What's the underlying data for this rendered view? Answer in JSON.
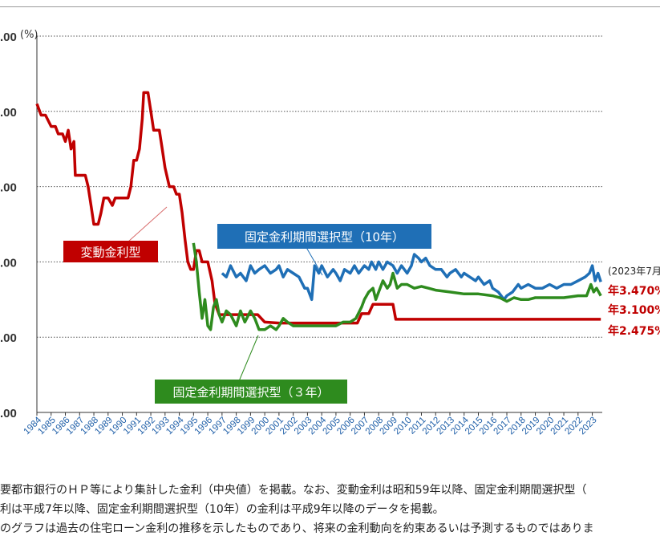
{
  "chart_data": {
    "type": "line",
    "y_unit": "(%)",
    "ylim": [
      0,
      10
    ],
    "yticks": [
      {
        "value": 10,
        "label": ".00"
      },
      {
        "value": 8,
        "label": ".00"
      },
      {
        "value": 6,
        "label": ".00"
      },
      {
        "value": 4,
        "label": ".00"
      },
      {
        "value": 2,
        "label": ".00"
      },
      {
        "value": 0,
        "label": ".00"
      }
    ],
    "xlim": [
      1984,
      2023.7
    ],
    "xticks": [
      "1984",
      "1985",
      "1986",
      "1987",
      "1988",
      "1989",
      "1990",
      "1991",
      "1992",
      "1993",
      "1994",
      "1995",
      "1996",
      "1997",
      "1998",
      "1999",
      "2000",
      "2001",
      "2002",
      "2003",
      "2004",
      "2005",
      "2006",
      "2007",
      "2008",
      "2009",
      "2010",
      "2011",
      "2012",
      "2013",
      "2014",
      "2015",
      "2016",
      "2017",
      "2018",
      "2019",
      "2020",
      "2021",
      "2022",
      "2023"
    ],
    "grid": "horizontal dotted",
    "series": [
      {
        "name": "変動金利型",
        "color": "#c00000",
        "label_color": "#c00000",
        "points": [
          [
            1984.0,
            8.2
          ],
          [
            1984.3,
            7.9
          ],
          [
            1984.6,
            7.9
          ],
          [
            1985.0,
            7.6
          ],
          [
            1985.3,
            7.6
          ],
          [
            1985.5,
            7.4
          ],
          [
            1985.8,
            7.4
          ],
          [
            1986.0,
            7.2
          ],
          [
            1986.2,
            7.5
          ],
          [
            1986.4,
            7.0
          ],
          [
            1986.6,
            7.2
          ],
          [
            1986.7,
            6.3
          ],
          [
            1987.0,
            6.3
          ],
          [
            1987.4,
            6.3
          ],
          [
            1987.6,
            6.0
          ],
          [
            1987.8,
            5.5
          ],
          [
            1988.0,
            5.0
          ],
          [
            1988.3,
            5.0
          ],
          [
            1988.5,
            5.3
          ],
          [
            1988.7,
            5.7
          ],
          [
            1989.0,
            5.7
          ],
          [
            1989.3,
            5.5
          ],
          [
            1989.5,
            5.7
          ],
          [
            1990.0,
            5.7
          ],
          [
            1990.4,
            5.7
          ],
          [
            1990.6,
            6.0
          ],
          [
            1990.8,
            6.7
          ],
          [
            1991.0,
            6.7
          ],
          [
            1991.2,
            7.0
          ],
          [
            1991.4,
            7.8
          ],
          [
            1991.5,
            8.5
          ],
          [
            1991.8,
            8.5
          ],
          [
            1992.0,
            8.0
          ],
          [
            1992.2,
            7.5
          ],
          [
            1992.6,
            7.5
          ],
          [
            1992.8,
            7.0
          ],
          [
            1993.0,
            6.5
          ],
          [
            1993.3,
            6.0
          ],
          [
            1993.6,
            6.0
          ],
          [
            1993.8,
            5.8
          ],
          [
            1994.0,
            5.8
          ],
          [
            1994.2,
            5.3
          ],
          [
            1994.4,
            4.6
          ],
          [
            1994.6,
            4.0
          ],
          [
            1994.8,
            3.8
          ],
          [
            1995.0,
            3.8
          ],
          [
            1995.2,
            4.3
          ],
          [
            1995.4,
            4.3
          ],
          [
            1995.6,
            4.0
          ],
          [
            1996.0,
            4.0
          ],
          [
            1996.3,
            3.5
          ],
          [
            1996.5,
            2.9
          ],
          [
            1996.8,
            2.6
          ],
          [
            1998.0,
            2.6
          ],
          [
            1999.0,
            2.6
          ],
          [
            1999.5,
            2.6
          ],
          [
            2000.0,
            2.4
          ],
          [
            2001.0,
            2.375
          ],
          [
            2003.0,
            2.375
          ],
          [
            2005.0,
            2.375
          ],
          [
            2006.5,
            2.375
          ],
          [
            2006.8,
            2.625
          ],
          [
            2007.3,
            2.625
          ],
          [
            2007.6,
            2.875
          ],
          [
            2008.0,
            2.875
          ],
          [
            2009.0,
            2.875
          ],
          [
            2009.2,
            2.475
          ],
          [
            2012.0,
            2.475
          ],
          [
            2016.0,
            2.475
          ],
          [
            2020.0,
            2.475
          ],
          [
            2023.6,
            2.475
          ]
        ]
      },
      {
        "name": "固定金利期間選択型（10年）",
        "color": "#1f6fb6",
        "label_color": "#1f6fb6",
        "points": [
          [
            1997.0,
            3.7
          ],
          [
            1997.3,
            3.6
          ],
          [
            1997.6,
            3.9
          ],
          [
            1998.0,
            3.6
          ],
          [
            1998.3,
            3.7
          ],
          [
            1998.7,
            3.5
          ],
          [
            1999.0,
            3.9
          ],
          [
            1999.3,
            3.7
          ],
          [
            1999.6,
            3.8
          ],
          [
            2000.0,
            3.9
          ],
          [
            2000.4,
            3.7
          ],
          [
            2000.8,
            3.8
          ],
          [
            2001.0,
            3.9
          ],
          [
            2001.3,
            3.6
          ],
          [
            2001.6,
            3.8
          ],
          [
            2002.0,
            3.7
          ],
          [
            2002.4,
            3.6
          ],
          [
            2002.8,
            3.3
          ],
          [
            2003.0,
            3.3
          ],
          [
            2003.3,
            3.0
          ],
          [
            2003.5,
            3.9
          ],
          [
            2003.8,
            3.7
          ],
          [
            2004.0,
            3.9
          ],
          [
            2004.4,
            3.6
          ],
          [
            2004.8,
            3.8
          ],
          [
            2005.0,
            3.7
          ],
          [
            2005.3,
            3.5
          ],
          [
            2005.6,
            3.8
          ],
          [
            2006.0,
            3.7
          ],
          [
            2006.3,
            3.9
          ],
          [
            2006.6,
            3.7
          ],
          [
            2007.0,
            3.9
          ],
          [
            2007.3,
            3.8
          ],
          [
            2007.5,
            4.0
          ],
          [
            2007.8,
            3.8
          ],
          [
            2008.0,
            4.0
          ],
          [
            2008.3,
            3.8
          ],
          [
            2008.6,
            4.0
          ],
          [
            2009.0,
            3.9
          ],
          [
            2009.3,
            3.7
          ],
          [
            2009.6,
            3.9
          ],
          [
            2010.0,
            3.7
          ],
          [
            2010.3,
            3.9
          ],
          [
            2010.5,
            4.2
          ],
          [
            2010.8,
            4.1
          ],
          [
            2011.0,
            4.0
          ],
          [
            2011.3,
            4.1
          ],
          [
            2011.6,
            3.9
          ],
          [
            2012.0,
            3.8
          ],
          [
            2012.4,
            3.8
          ],
          [
            2012.8,
            3.6
          ],
          [
            2013.0,
            3.7
          ],
          [
            2013.4,
            3.8
          ],
          [
            2013.8,
            3.6
          ],
          [
            2014.0,
            3.7
          ],
          [
            2014.4,
            3.6
          ],
          [
            2014.8,
            3.5
          ],
          [
            2015.0,
            3.6
          ],
          [
            2015.4,
            3.4
          ],
          [
            2015.8,
            3.5
          ],
          [
            2016.0,
            3.3
          ],
          [
            2016.4,
            3.2
          ],
          [
            2016.8,
            3.0
          ],
          [
            2017.0,
            3.1
          ],
          [
            2017.4,
            3.2
          ],
          [
            2017.8,
            3.4
          ],
          [
            2018.0,
            3.3
          ],
          [
            2018.5,
            3.4
          ],
          [
            2019.0,
            3.3
          ],
          [
            2019.5,
            3.3
          ],
          [
            2020.0,
            3.4
          ],
          [
            2020.5,
            3.3
          ],
          [
            2021.0,
            3.4
          ],
          [
            2021.5,
            3.4
          ],
          [
            2022.0,
            3.5
          ],
          [
            2022.5,
            3.6
          ],
          [
            2022.8,
            3.7
          ],
          [
            2023.0,
            3.9
          ],
          [
            2023.2,
            3.5
          ],
          [
            2023.4,
            3.7
          ],
          [
            2023.6,
            3.47
          ]
        ]
      },
      {
        "name": "固定金利期間選択型（３年）",
        "color": "#2e8b1e",
        "label_color": "#2e8b1e",
        "points": [
          [
            1995.0,
            4.5
          ],
          [
            1995.2,
            4.0
          ],
          [
            1995.4,
            3.2
          ],
          [
            1995.6,
            2.5
          ],
          [
            1995.8,
            3.0
          ],
          [
            1996.0,
            2.3
          ],
          [
            1996.2,
            2.2
          ],
          [
            1996.4,
            2.8
          ],
          [
            1996.6,
            3.0
          ],
          [
            1996.8,
            2.6
          ],
          [
            1997.0,
            2.4
          ],
          [
            1997.3,
            2.7
          ],
          [
            1997.6,
            2.6
          ],
          [
            1998.0,
            2.3
          ],
          [
            1998.3,
            2.7
          ],
          [
            1998.6,
            2.4
          ],
          [
            1999.0,
            2.7
          ],
          [
            1999.3,
            2.5
          ],
          [
            1999.6,
            2.2
          ],
          [
            2000.0,
            2.2
          ],
          [
            2000.4,
            2.3
          ],
          [
            2000.8,
            2.2
          ],
          [
            2001.0,
            2.3
          ],
          [
            2001.3,
            2.5
          ],
          [
            2001.6,
            2.4
          ],
          [
            2002.0,
            2.3
          ],
          [
            2002.5,
            2.3
          ],
          [
            2003.0,
            2.3
          ],
          [
            2003.5,
            2.3
          ],
          [
            2004.0,
            2.3
          ],
          [
            2004.5,
            2.3
          ],
          [
            2005.0,
            2.3
          ],
          [
            2005.5,
            2.4
          ],
          [
            2006.0,
            2.4
          ],
          [
            2006.4,
            2.5
          ],
          [
            2006.8,
            2.8
          ],
          [
            2007.0,
            3.0
          ],
          [
            2007.3,
            3.2
          ],
          [
            2007.6,
            3.3
          ],
          [
            2007.8,
            3.0
          ],
          [
            2008.0,
            3.2
          ],
          [
            2008.3,
            3.5
          ],
          [
            2008.6,
            3.3
          ],
          [
            2008.8,
            3.4
          ],
          [
            2009.0,
            3.7
          ],
          [
            2009.3,
            3.3
          ],
          [
            2009.6,
            3.4
          ],
          [
            2010.0,
            3.4
          ],
          [
            2010.5,
            3.3
          ],
          [
            2011.0,
            3.35
          ],
          [
            2011.5,
            3.3
          ],
          [
            2012.0,
            3.25
          ],
          [
            2013.0,
            3.2
          ],
          [
            2014.0,
            3.15
          ],
          [
            2015.0,
            3.15
          ],
          [
            2016.0,
            3.1
          ],
          [
            2016.5,
            3.05
          ],
          [
            2017.0,
            2.95
          ],
          [
            2017.5,
            3.05
          ],
          [
            2018.0,
            3.0
          ],
          [
            2018.5,
            3.0
          ],
          [
            2019.0,
            3.05
          ],
          [
            2020.0,
            3.05
          ],
          [
            2021.0,
            3.05
          ],
          [
            2022.0,
            3.1
          ],
          [
            2022.6,
            3.1
          ],
          [
            2022.9,
            3.4
          ],
          [
            2023.1,
            3.2
          ],
          [
            2023.3,
            3.3
          ],
          [
            2023.6,
            3.1
          ]
        ]
      }
    ],
    "series_labels": [
      {
        "text": "変動金利型",
        "bg": "#c00000"
      },
      {
        "text": "固定金利期間選択型（10年）",
        "bg": "#1f6fb6"
      },
      {
        "text": "固定金利期間選択型（３年）",
        "bg": "#2e8b1e"
      }
    ],
    "end_annotation": {
      "date": "(2023年7月",
      "values": [
        {
          "text": "年3.470%",
          "color": "#c00000"
        },
        {
          "text": "年3.100%",
          "color": "#c00000"
        },
        {
          "text": "年2.475%",
          "color": "#c00000"
        }
      ]
    }
  },
  "notes": [
    "要都市銀行のＨＰ等により集計した金利（中央値）を掲載。なお、変動金利は昭和59年以降、固定金利期間選択型（",
    "利は平成7年以降、固定金利期間選択型（10年）の金利は平成9年以降のデータを掲載。",
    "のグラフは過去の住宅ローン金利の推移を示したものであり、将来の金利動向を約束あるいは予測するものではありま"
  ]
}
